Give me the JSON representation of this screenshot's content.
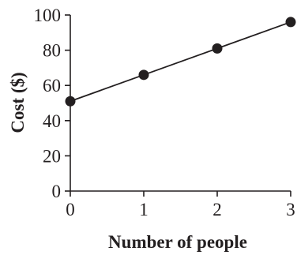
{
  "chart_data": {
    "type": "line",
    "title": "",
    "xlabel": "Number of people",
    "ylabel": "Cost ($)",
    "x": [
      0,
      1,
      2,
      3
    ],
    "series": [
      {
        "values": [
          51,
          66,
          81,
          96
        ]
      }
    ],
    "xticks": [
      "0",
      "1",
      "2",
      "3"
    ],
    "yticks": [
      "0",
      "20",
      "40",
      "60",
      "80",
      "100"
    ],
    "xlim": [
      0,
      3
    ],
    "ylim": [
      0,
      100
    ],
    "grid": false,
    "markers": true,
    "color": "#231f20"
  }
}
